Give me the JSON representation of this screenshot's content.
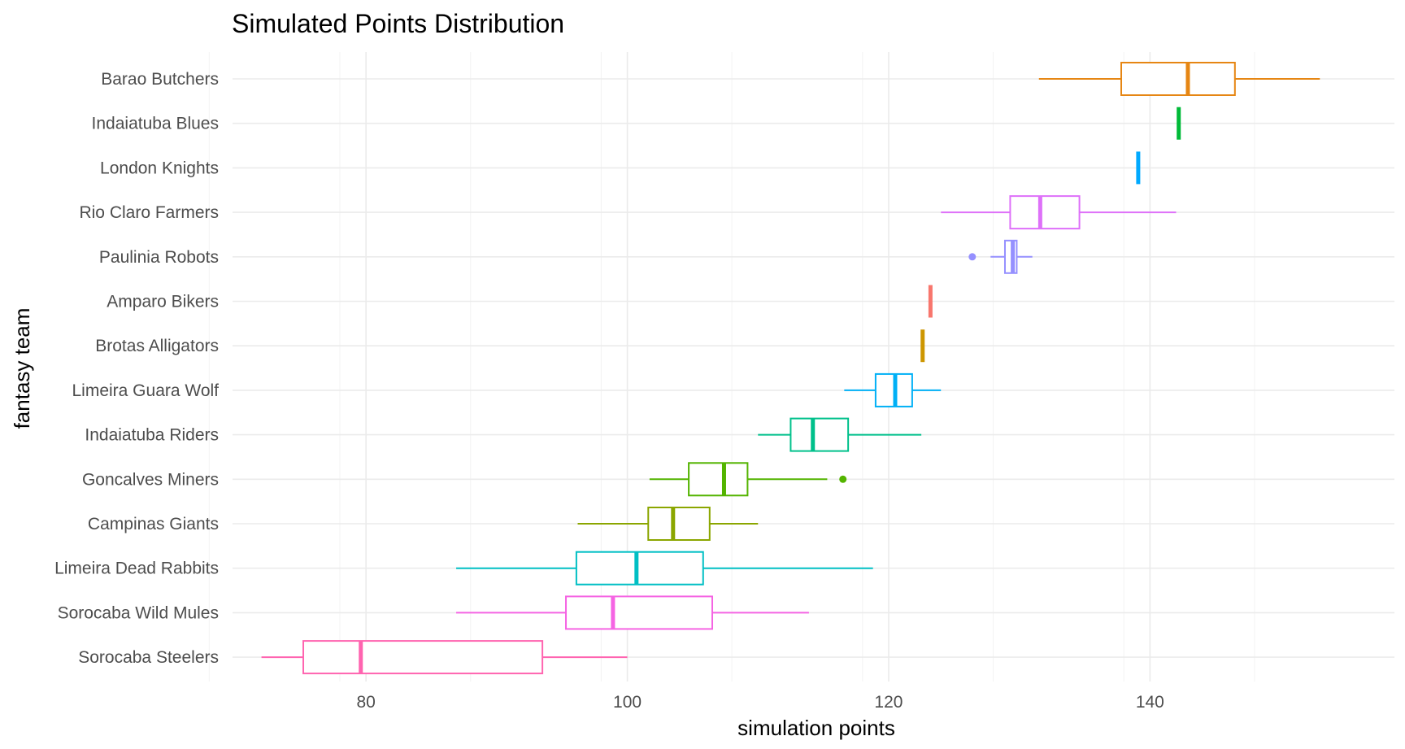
{
  "chart_data": {
    "type": "boxplot",
    "title": "Simulated Points Distribution",
    "xlabel": "simulation points",
    "ylabel": "fantasy team",
    "xlim": [
      68,
      156
    ],
    "x_ticks": [
      80,
      100,
      120,
      140
    ],
    "grid": true,
    "legend": "none",
    "teams": [
      {
        "name": "Barao Butchers",
        "color": "#E68613",
        "min": 131.5,
        "q1": 137.8,
        "median": 142.9,
        "q3": 146.5,
        "max": 153.0,
        "outliers": []
      },
      {
        "name": "Indaiatuba Blues",
        "color": "#00BA38",
        "min": 142.2,
        "q1": 142.2,
        "median": 142.2,
        "q3": 142.2,
        "max": 142.2,
        "outliers": []
      },
      {
        "name": "London Knights",
        "color": "#00A9FF",
        "min": 139.1,
        "q1": 139.1,
        "median": 139.1,
        "q3": 139.1,
        "max": 139.1,
        "outliers": []
      },
      {
        "name": "Rio Claro Farmers",
        "color": "#DE71F9",
        "min": 124.0,
        "q1": 129.3,
        "median": 131.6,
        "q3": 134.6,
        "max": 142.0,
        "outliers": []
      },
      {
        "name": "Paulinia Robots",
        "color": "#9590FF",
        "min": 127.8,
        "q1": 128.9,
        "median": 129.5,
        "q3": 129.8,
        "max": 131.0,
        "outliers": [
          126.4
        ]
      },
      {
        "name": "Amparo Bikers",
        "color": "#F8766D",
        "min": 123.2,
        "q1": 123.2,
        "median": 123.2,
        "q3": 123.2,
        "max": 123.2,
        "outliers": []
      },
      {
        "name": "Brotas Alligators",
        "color": "#CD9600",
        "min": 122.6,
        "q1": 122.6,
        "median": 122.6,
        "q3": 122.6,
        "max": 122.6,
        "outliers": []
      },
      {
        "name": "Limeira Guara Wolf",
        "color": "#00B0F6",
        "min": 116.6,
        "q1": 119.0,
        "median": 120.5,
        "q3": 121.8,
        "max": 124.0,
        "outliers": []
      },
      {
        "name": "Indaiatuba Riders",
        "color": "#00C08B",
        "min": 110.0,
        "q1": 112.5,
        "median": 114.2,
        "q3": 116.9,
        "max": 122.5,
        "outliers": []
      },
      {
        "name": "Goncalves Miners",
        "color": "#53B400",
        "min": 101.7,
        "q1": 104.7,
        "median": 107.4,
        "q3": 109.2,
        "max": 115.3,
        "outliers": [
          116.5
        ]
      },
      {
        "name": "Campinas Giants",
        "color": "#8BA600",
        "min": 96.2,
        "q1": 101.6,
        "median": 103.5,
        "q3": 106.3,
        "max": 110.0,
        "outliers": []
      },
      {
        "name": "Limeira Dead Rabbits",
        "color": "#00BFC4",
        "min": 86.9,
        "q1": 96.1,
        "median": 100.7,
        "q3": 105.8,
        "max": 118.8,
        "outliers": []
      },
      {
        "name": "Sorocaba Wild Mules",
        "color": "#F564E3",
        "min": 86.9,
        "q1": 95.3,
        "median": 98.9,
        "q3": 106.5,
        "max": 113.9,
        "outliers": []
      },
      {
        "name": "Sorocaba Steelers",
        "color": "#FF64B0",
        "min": 72.0,
        "q1": 75.2,
        "median": 79.6,
        "q3": 93.5,
        "max": 100.0,
        "outliers": []
      }
    ]
  }
}
